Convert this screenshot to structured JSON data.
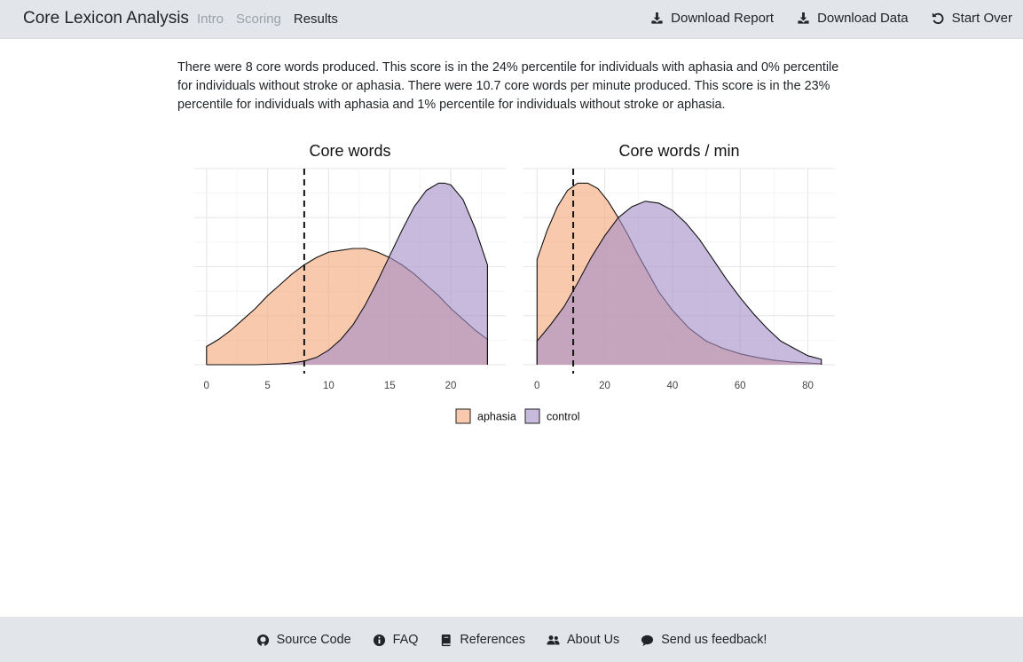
{
  "navbar": {
    "brand": "Core Lexicon Analysis",
    "tabs": [
      {
        "label": "Intro"
      },
      {
        "label": "Scoring"
      },
      {
        "label": "Results"
      }
    ],
    "actions": [
      {
        "label": "Download Report",
        "icon": "download-icon"
      },
      {
        "label": "Download Data",
        "icon": "download-icon"
      },
      {
        "label": "Start Over",
        "icon": "undo-icon"
      }
    ]
  },
  "summary": "There were 8 core words produced. This score is in the 24% percentile for individuals with aphasia and 0% percentile for individuals without stroke or aphasia. There were 10.7 core words per minute produced. This score is in the 23% percentile for individuals with aphasia and 1% percentile for individuals without stroke or aphasia.",
  "colors": {
    "aphasia": "#f5a87a",
    "control": "#a58fc8",
    "overlap": "#b98596"
  },
  "chart_data": [
    {
      "type": "area",
      "title": "Core words",
      "xlabel": "",
      "ylabel": "",
      "xlim": [
        -1,
        24.5
      ],
      "xticks": [
        0,
        5,
        10,
        15,
        20
      ],
      "grid": true,
      "legend": "bottom",
      "marker_x": 8,
      "series": [
        {
          "name": "aphasia",
          "x": [
            0,
            1,
            2,
            3,
            4,
            5,
            6,
            7,
            8,
            9,
            10,
            11,
            12,
            12.5,
            13,
            14,
            15,
            16,
            17,
            18,
            19,
            20,
            21,
            22,
            23
          ],
          "y": [
            0.1,
            0.14,
            0.19,
            0.25,
            0.31,
            0.38,
            0.44,
            0.5,
            0.55,
            0.59,
            0.62,
            0.63,
            0.64,
            0.64,
            0.64,
            0.62,
            0.59,
            0.55,
            0.5,
            0.44,
            0.38,
            0.31,
            0.25,
            0.19,
            0.14
          ]
        },
        {
          "name": "control",
          "x": [
            0,
            2,
            4,
            6,
            7,
            8,
            9,
            10,
            11,
            12,
            13,
            14,
            15,
            16,
            17,
            18,
            19,
            19.5,
            20,
            21,
            22,
            23
          ],
          "y": [
            0,
            0,
            0,
            0.005,
            0.01,
            0.02,
            0.04,
            0.08,
            0.14,
            0.22,
            0.33,
            0.46,
            0.6,
            0.74,
            0.87,
            0.96,
            1.0,
            1.0,
            0.99,
            0.91,
            0.75,
            0.55
          ]
        }
      ]
    },
    {
      "type": "area",
      "title": "Core words / min",
      "xlabel": "",
      "ylabel": "",
      "xlim": [
        -4,
        88
      ],
      "xticks": [
        0,
        20,
        40,
        60,
        80
      ],
      "grid": true,
      "legend": "bottom",
      "marker_x": 10.7,
      "series": [
        {
          "name": "aphasia",
          "x": [
            0,
            3,
            6,
            9,
            12,
            15,
            18,
            21,
            24,
            27,
            30,
            33,
            36,
            40,
            45,
            50,
            55,
            60,
            65,
            70,
            75,
            80,
            84
          ],
          "y": [
            0.58,
            0.74,
            0.87,
            0.96,
            1.0,
            1.0,
            0.97,
            0.9,
            0.81,
            0.71,
            0.6,
            0.5,
            0.4,
            0.3,
            0.2,
            0.13,
            0.09,
            0.06,
            0.04,
            0.025,
            0.015,
            0.01,
            0.005
          ]
        },
        {
          "name": "control",
          "x": [
            0,
            4,
            8,
            12,
            16,
            20,
            24,
            28,
            32,
            36,
            40,
            44,
            48,
            52,
            56,
            60,
            64,
            68,
            72,
            76,
            80,
            84
          ],
          "y": [
            0.13,
            0.22,
            0.32,
            0.45,
            0.59,
            0.71,
            0.81,
            0.87,
            0.9,
            0.89,
            0.85,
            0.78,
            0.69,
            0.58,
            0.47,
            0.37,
            0.28,
            0.2,
            0.13,
            0.09,
            0.05,
            0.03
          ]
        }
      ]
    }
  ],
  "footer": {
    "links": [
      {
        "label": "Source Code",
        "icon": "github-icon"
      },
      {
        "label": "FAQ",
        "icon": "info-icon"
      },
      {
        "label": "References",
        "icon": "book-icon"
      },
      {
        "label": "About Us",
        "icon": "users-icon"
      },
      {
        "label": "Send us feedback!",
        "icon": "comment-icon"
      }
    ]
  }
}
